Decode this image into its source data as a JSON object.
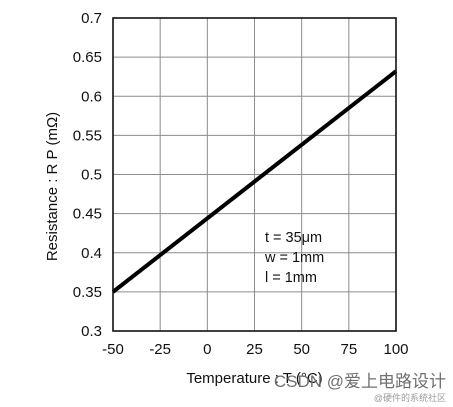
{
  "chart_data": {
    "type": "line",
    "xlabel": "Temperature : T (°C)",
    "ylabel": "Resistance : R P (mΩ)",
    "xlim": [
      -50,
      100
    ],
    "ylim": [
      0.3,
      0.7
    ],
    "x_ticks": [
      -50,
      -25,
      0,
      25,
      50,
      75,
      100
    ],
    "y_ticks": [
      0.3,
      0.35,
      0.4,
      0.45,
      0.5,
      0.55,
      0.6,
      0.65,
      0.7
    ],
    "grid": true,
    "series": [
      {
        "x": [
          -50,
          100
        ],
        "y": [
          0.35,
          0.632
        ]
      }
    ],
    "annotations": [
      "t = 35μm",
      "w = 1mm",
      "l = 1mm"
    ],
    "line_color": "#000000"
  },
  "watermark": {
    "main": "CSDN @爱上电路设计",
    "small": "@硬件的系统社区"
  }
}
